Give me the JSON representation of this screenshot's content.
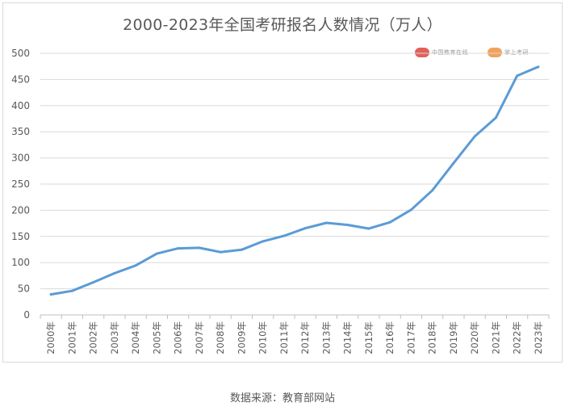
{
  "chart_data": {
    "type": "line",
    "title": "2000-2023年全国考研报名人数情况（万人）",
    "xlabel": "",
    "ylabel": "",
    "ylim": [
      0,
      500
    ],
    "yticks": [
      0,
      50,
      100,
      150,
      200,
      250,
      300,
      350,
      400,
      450,
      500
    ],
    "grid": true,
    "categories": [
      "2000年",
      "2001年",
      "2002年",
      "2003年",
      "2004年",
      "2005年",
      "2006年",
      "2007年",
      "2008年",
      "2009年",
      "2010年",
      "2011年",
      "2012年",
      "2013年",
      "2014年",
      "2015年",
      "2016年",
      "2017年",
      "2018年",
      "2019年",
      "2020年",
      "2021年",
      "2022年",
      "2023年"
    ],
    "series": [
      {
        "values": [
          39.2,
          46,
          62.4,
          79.7,
          94.5,
          117.2,
          127.1,
          128.2,
          120,
          124.6,
          140.6,
          151.1,
          165.6,
          176,
          172,
          164.9,
          177,
          201,
          238,
          290,
          341,
          377,
          457,
          474
        ],
        "color": "#5b9bd5"
      }
    ],
    "source": "数据来源：教育部网站"
  },
  "watermarks": [
    {
      "icon": "logo-left",
      "text": "中国教育在线",
      "color": "#e3605a"
    },
    {
      "icon": "logo-right",
      "text": "掌上考研",
      "color": "#f0a35c"
    }
  ]
}
